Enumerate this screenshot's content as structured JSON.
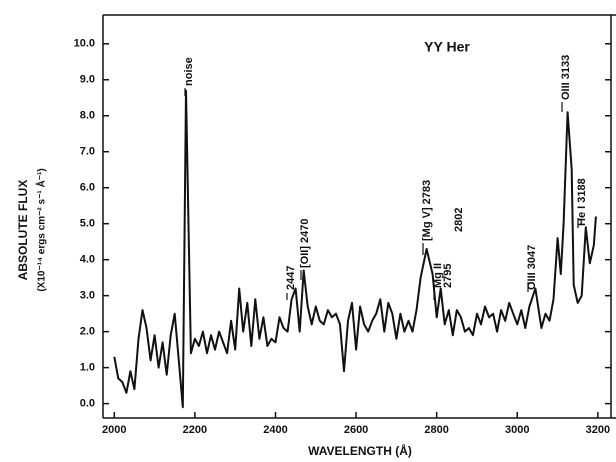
{
  "chart_data": {
    "type": "line",
    "title": "YY Her",
    "x_label": "WAVELENGTH (Å)",
    "y_label": "ABSOLUTE FLUX",
    "y_label_units": "(X10⁻¹⁴ ergs cm⁻² s⁻¹ Å⁻¹)",
    "annotations": [
      "noise",
      "2447",
      "[OII] 2470",
      "[Mg V] 2783",
      "Mg II",
      "2795",
      "2802",
      "OIII 3047",
      "OIII 3133",
      "He I 3188"
    ],
    "color": "#111111",
    "x": [
      2000,
      2010,
      2020,
      2030,
      2040,
      2050,
      2060,
      2070,
      2080,
      2090,
      2100,
      2110,
      2120,
      2130,
      2140,
      2150,
      2160,
      2170,
      2178,
      2190,
      2200,
      2210,
      2220,
      2230,
      2240,
      2250,
      2260,
      2270,
      2280,
      2290,
      2300,
      2310,
      2320,
      2330,
      2340,
      2350,
      2360,
      2370,
      2380,
      2390,
      2400,
      2410,
      2420,
      2430,
      2440,
      2450,
      2460,
      2470,
      2480,
      2490,
      2500,
      2510,
      2520,
      2530,
      2540,
      2550,
      2560,
      2570,
      2580,
      2590,
      2600,
      2610,
      2620,
      2630,
      2640,
      2650,
      2660,
      2670,
      2680,
      2690,
      2700,
      2710,
      2720,
      2730,
      2740,
      2750,
      2760,
      2775,
      2790,
      2800,
      2810,
      2820,
      2830,
      2840,
      2850,
      2860,
      2870,
      2880,
      2890,
      2900,
      2910,
      2920,
      2930,
      2940,
      2950,
      2960,
      2970,
      2980,
      2990,
      3000,
      3010,
      3020,
      3030,
      3045,
      3060,
      3070,
      3080,
      3090,
      3100,
      3108,
      3115,
      3125,
      3135,
      3140,
      3150,
      3160,
      3170,
      3180,
      3190,
      3195
    ],
    "values": [
      1.3,
      0.7,
      0.6,
      0.3,
      0.9,
      0.4,
      1.8,
      2.6,
      2.1,
      1.2,
      1.9,
      1.0,
      1.7,
      0.8,
      1.9,
      2.5,
      1.2,
      -0.1,
      8.7,
      1.4,
      1.8,
      1.6,
      2.0,
      1.4,
      1.9,
      1.5,
      2.0,
      1.7,
      1.4,
      2.3,
      1.5,
      3.2,
      2.0,
      2.8,
      1.6,
      2.9,
      1.8,
      2.4,
      1.6,
      1.8,
      1.7,
      2.4,
      2.1,
      2.0,
      2.9,
      3.2,
      2.0,
      3.7,
      2.7,
      2.2,
      2.7,
      2.3,
      2.2,
      2.6,
      2.4,
      2.5,
      2.2,
      0.9,
      2.3,
      2.8,
      1.5,
      2.7,
      2.2,
      2.0,
      2.3,
      2.5,
      2.9,
      2.0,
      2.8,
      2.5,
      1.8,
      2.5,
      2.0,
      2.3,
      2.0,
      2.6,
      3.5,
      4.3,
      3.6,
      2.4,
      3.2,
      2.2,
      2.6,
      1.9,
      2.6,
      2.4,
      2.0,
      2.1,
      1.9,
      2.5,
      2.2,
      2.7,
      2.4,
      2.5,
      2.0,
      2.6,
      2.3,
      2.8,
      2.5,
      2.2,
      2.6,
      2.1,
      2.7,
      3.2,
      2.1,
      2.5,
      2.3,
      2.9,
      4.6,
      3.6,
      5.0,
      8.1,
      6.5,
      3.3,
      2.8,
      3.0,
      4.9,
      3.9,
      4.4,
      5.2
    ],
    "xlim": [
      1972,
      3245
    ],
    "ylim": [
      -0.4,
      10.8
    ],
    "xticks": [
      2000,
      2200,
      2400,
      2600,
      2800,
      3000,
      3200
    ],
    "yticks": [
      {
        "value": 0,
        "label": "0.0"
      },
      {
        "value": 1,
        "label": "1.0"
      },
      {
        "value": 2,
        "label": "2.0"
      },
      {
        "value": 3,
        "label": "3.0"
      },
      {
        "value": 4,
        "label": "4.0"
      },
      {
        "value": 5,
        "label": "5.0"
      },
      {
        "value": 6,
        "label": "6.0"
      },
      {
        "value": 7,
        "label": "7.0"
      },
      {
        "value": 8,
        "label": "8.0"
      },
      {
        "value": 9,
        "label": "9.0"
      },
      {
        "value": 10,
        "label": "10.0"
      }
    ]
  }
}
